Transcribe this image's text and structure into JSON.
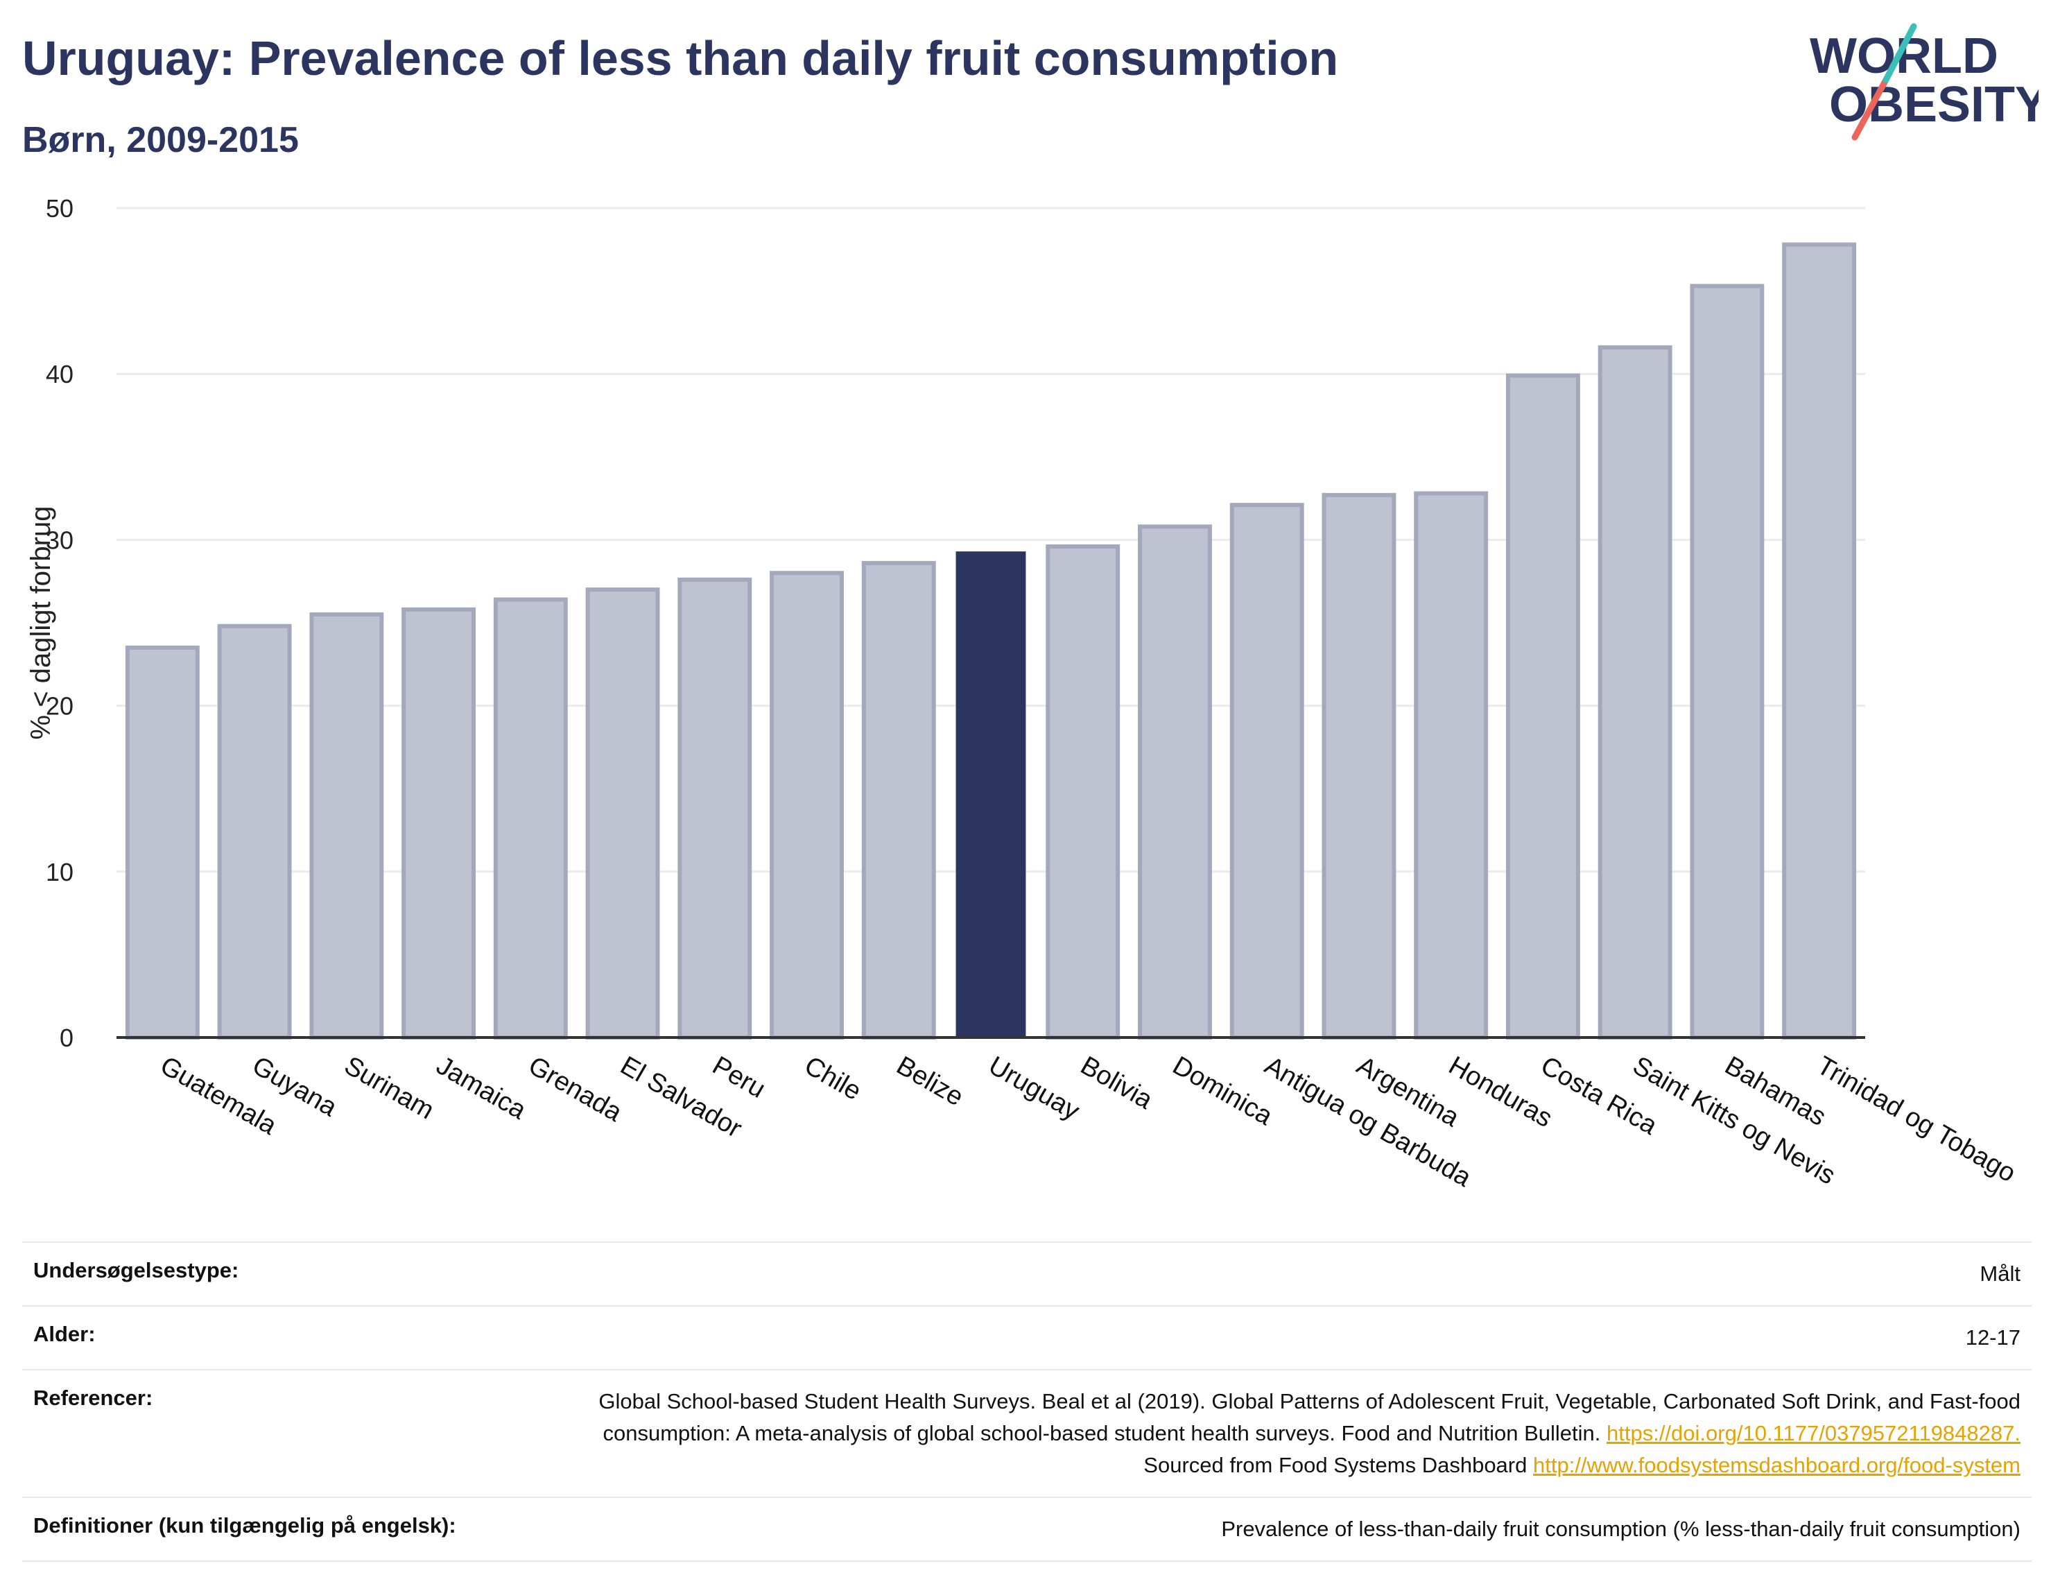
{
  "header": {
    "title": "Uruguay: Prevalence of less than daily fruit consumption",
    "subtitle": "Børn, 2009-2015"
  },
  "logo": {
    "line1": "WORLD",
    "line2": "OBESITY",
    "accent_teal": "#3bbfb8",
    "accent_red": "#e8665a",
    "text_color": "#2b355f"
  },
  "colors": {
    "bar": "#bfc3d1",
    "bar_border": "#a3a8bd",
    "highlight": "#2b355f",
    "grid": "#ebebeb",
    "axis": "#333333"
  },
  "chart_data": {
    "type": "bar",
    "title": "Uruguay: Prevalence of less than daily fruit consumption",
    "subtitle": "Børn, 2009-2015",
    "ylabel": "% < dagligt forbrug",
    "xlabel": "",
    "ylim": [
      0,
      50
    ],
    "yticks": [
      0,
      10,
      20,
      30,
      40,
      50
    ],
    "grid": true,
    "highlight": "Uruguay",
    "categories": [
      "Guatemala",
      "Guyana",
      "Surinam",
      "Jamaica",
      "Grenada",
      "El Salvador",
      "Peru",
      "Chile",
      "Belize",
      "Uruguay",
      "Bolivia",
      "Dominica",
      "Antigua og Barbuda",
      "Argentina",
      "Honduras",
      "Costa Rica",
      "Saint Kitts og Nevis",
      "Bahamas",
      "Trinidad og Tobago"
    ],
    "values": [
      23.5,
      24.8,
      25.5,
      25.8,
      26.4,
      27.0,
      27.6,
      28.0,
      28.6,
      29.3,
      29.6,
      30.8,
      32.1,
      32.7,
      32.8,
      39.9,
      41.6,
      45.3,
      47.8
    ]
  },
  "meta": {
    "rows": [
      {
        "key": "Undersøgelsestype:",
        "value": "Målt"
      },
      {
        "key": "Alder:",
        "value": "12-17"
      },
      {
        "key": "Referencer:",
        "value": ""
      },
      {
        "key": "Definitioner (kun tilgængelig på engelsk):",
        "value": "Prevalence of less-than-daily fruit consumption (% less-than-daily fruit consumption)"
      }
    ],
    "references": {
      "text1": "Global School-based Student Health Surveys. Beal et al (2019). Global Patterns of Adolescent Fruit, Vegetable, Carbonated Soft Drink, and Fast-food consumption: A meta-analysis of global school-based student health surveys. Food and Nutrition Bulletin.",
      "link1": "https://doi.org/10.1177/0379572119848287.",
      "text2": "Sourced from Food Systems Dashboard",
      "link2": "http://www.foodsystemsdashboard.org/food-system"
    }
  }
}
